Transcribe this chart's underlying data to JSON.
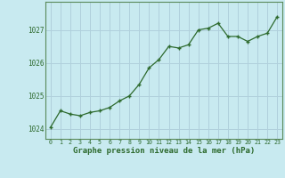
{
  "x": [
    0,
    1,
    2,
    3,
    4,
    5,
    6,
    7,
    8,
    9,
    10,
    11,
    12,
    13,
    14,
    15,
    16,
    17,
    18,
    19,
    20,
    21,
    22,
    23
  ],
  "y": [
    1024.05,
    1024.55,
    1024.45,
    1024.4,
    1024.5,
    1024.55,
    1024.65,
    1024.85,
    1025.0,
    1025.35,
    1025.85,
    1026.1,
    1026.5,
    1026.45,
    1026.55,
    1027.0,
    1027.05,
    1027.2,
    1026.8,
    1026.8,
    1026.65,
    1026.8,
    1026.9,
    1027.4
  ],
  "line_color": "#2d6a2d",
  "marker_color": "#2d6a2d",
  "bg_color": "#c8eaf0",
  "grid_color": "#b0d0dc",
  "axis_label_color": "#2d6a2d",
  "title": "Graphe pression niveau de la mer (hPa)",
  "ylim": [
    1023.7,
    1027.85
  ],
  "xlim": [
    -0.5,
    23.5
  ],
  "yticks": [
    1024,
    1025,
    1026,
    1027
  ],
  "xticks": [
    0,
    1,
    2,
    3,
    4,
    5,
    6,
    7,
    8,
    9,
    10,
    11,
    12,
    13,
    14,
    15,
    16,
    17,
    18,
    19,
    20,
    21,
    22,
    23
  ]
}
